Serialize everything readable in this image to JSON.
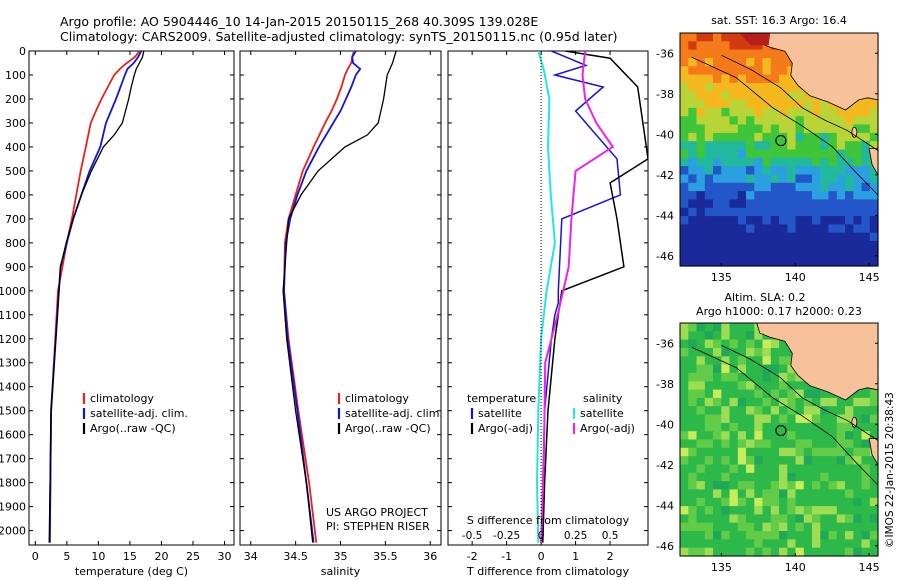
{
  "header": {
    "line1": "Argo profile: AO 5904446_10 14-Jan-2015 20150115_268 40.309S 139.028E",
    "line2": "Climatology: CARS2009. Satellite-adjusted climatology: synTS_20150115.nc (0.95d later)"
  },
  "colors": {
    "climatology": "#e8221b",
    "satellite": "#1414d8",
    "argo": "#000000",
    "sat_temp": "#22e6e6",
    "sat_sal_mag": "#ee22ee",
    "land": "#f7c19a"
  },
  "depth_axis": {
    "ticks": [
      "0",
      "100",
      "200",
      "300",
      "400",
      "500",
      "600",
      "700",
      "800",
      "900",
      "1000",
      "1100",
      "1200",
      "1300",
      "1400",
      "1500",
      "1600",
      "1700",
      "1800",
      "1900",
      "2000"
    ],
    "ylim": [
      0,
      2060
    ]
  },
  "chart_data": [
    {
      "type": "line",
      "xlabel": "temperature (deg C)",
      "xticks": [
        "0",
        "5",
        "10",
        "15",
        "20",
        "25",
        "30"
      ],
      "xlim": [
        -1,
        31.5
      ],
      "legend": [
        "climatology",
        "satellite-adj. clim.",
        "Argo(..raw -QC)"
      ],
      "series": [
        {
          "name": "climatology",
          "x": [
            16.5,
            15.8,
            14.5,
            13.4,
            12.5,
            11.5,
            10.5,
            9.6,
            8.8,
            8.0,
            7.2,
            6.5,
            5.8,
            5.0,
            4.3,
            3.6,
            2.5,
            2.3
          ],
          "y": [
            0,
            25,
            50,
            75,
            100,
            150,
            200,
            250,
            300,
            400,
            500,
            600,
            700,
            800,
            900,
            1000,
            1500,
            2050
          ]
        },
        {
          "name": "satellite-adj. clim.",
          "x": [
            16.8,
            16.3,
            15.6,
            14.6,
            14.2,
            13.5,
            12.8,
            12.0,
            11.2,
            10.3,
            8.6,
            7.3,
            6.0,
            5.0,
            4.0,
            2.5,
            2.3
          ],
          "y": [
            0,
            25,
            50,
            75,
            100,
            150,
            200,
            250,
            300,
            400,
            500,
            600,
            700,
            800,
            900,
            1500,
            2050
          ]
        },
        {
          "name": "Argo(..raw -QC)",
          "x": [
            17.2,
            17.0,
            16.5,
            16.0,
            15.7,
            15.2,
            14.8,
            14.3,
            13.8,
            12.5,
            10.8,
            8.9,
            7.3,
            6.0,
            4.9,
            4.0,
            2.5,
            2.2
          ],
          "y": [
            0,
            25,
            50,
            75,
            100,
            150,
            200,
            250,
            300,
            350,
            400,
            500,
            600,
            700,
            800,
            900,
            1500,
            2050
          ]
        }
      ]
    },
    {
      "type": "line",
      "xlabel": "salinity",
      "xticks": [
        "34",
        "34.5",
        "35",
        "35.5",
        "36"
      ],
      "xlim": [
        33.88,
        36.12
      ],
      "legend": [
        "climatology",
        "satellite-adj. clim.",
        "Argo(..raw -QC)"
      ],
      "annotation": [
        "US ARGO PROJECT",
        "PI: STEPHEN RISER"
      ],
      "series": [
        {
          "name": "climatology",
          "x": [
            35.15,
            35.13,
            35.12,
            35.08,
            35.05,
            35.01,
            34.96,
            34.9,
            34.83,
            34.7,
            34.58,
            34.5,
            34.42,
            34.38,
            34.37,
            34.42,
            34.53,
            34.65,
            34.73
          ],
          "y": [
            0,
            25,
            50,
            75,
            100,
            150,
            200,
            250,
            300,
            400,
            500,
            600,
            700,
            800,
            1000,
            1200,
            1500,
            1800,
            2050
          ]
        },
        {
          "name": "satellite-adj. clim.",
          "x": [
            35.17,
            35.13,
            35.14,
            35.22,
            35.17,
            35.12,
            35.06,
            35.0,
            34.92,
            34.76,
            34.62,
            34.52,
            34.44,
            34.39,
            34.37,
            34.41,
            34.52,
            34.62,
            34.7
          ],
          "y": [
            0,
            25,
            50,
            75,
            100,
            150,
            200,
            250,
            300,
            400,
            500,
            600,
            700,
            800,
            1000,
            1200,
            1500,
            1800,
            2050
          ]
        },
        {
          "name": "Argo(..raw -QC)",
          "x": [
            35.62,
            35.6,
            35.58,
            35.55,
            35.52,
            35.5,
            35.48,
            35.45,
            35.42,
            35.3,
            35.05,
            34.75,
            34.56,
            34.42,
            34.36,
            34.4,
            34.5,
            34.62,
            34.69
          ],
          "y": [
            0,
            25,
            50,
            75,
            100,
            150,
            200,
            250,
            300,
            350,
            400,
            500,
            600,
            700,
            1000,
            1200,
            1500,
            1800,
            2050
          ]
        }
      ]
    },
    {
      "type": "line",
      "xlabel": "T difference from climatology",
      "xticks": [
        "-2",
        "-1",
        "0",
        "1",
        "2"
      ],
      "xlim": [
        -2.7,
        3.1
      ],
      "s_label": "S difference from climatology",
      "s_ticks": [
        "-0.5",
        "-0.25",
        "0",
        "0.25",
        "0.5"
      ],
      "legend_temperature": [
        "temperature",
        "satellite",
        "Argo(-adj)"
      ],
      "legend_salinity": [
        "salinity",
        "satellite",
        "Argo(-adj)"
      ],
      "series": [
        {
          "name": "satellite",
          "x": [
            0.3,
            0.8,
            1.3,
            0.4,
            1.8,
            1.0,
            2.2,
            2.3,
            0.6,
            0.5,
            0.5,
            0.4,
            0.3,
            0.1,
            0.05,
            0.02
          ],
          "y": [
            0,
            30,
            60,
            100,
            150,
            250,
            450,
            600,
            700,
            1000,
            1050,
            1100,
            1200,
            1500,
            1800,
            2050
          ]
        },
        {
          "name": "Argo(-adj)",
          "x": [
            0.7,
            2.0,
            2.8,
            3.0,
            3.1,
            2.0,
            2.2,
            2.4,
            0.6,
            0.4,
            0.2,
            0.1,
            0.05
          ],
          "y": [
            0,
            30,
            150,
            350,
            450,
            550,
            700,
            900,
            1000,
            1200,
            1500,
            1800,
            2050
          ]
        },
        {
          "name": "satellite",
          "x": [
            -0.02,
            0.02,
            0.06,
            0.05,
            0.07,
            0.1,
            0.04,
            0.0,
            -0.02,
            -0.03,
            -0.02
          ],
          "y": [
            0,
            80,
            200,
            400,
            600,
            800,
            1000,
            1200,
            1500,
            1800,
            2050
          ]
        },
        {
          "name": "Argo(-adj)",
          "x": [
            0.32,
            0.3,
            0.32,
            0.4,
            0.52,
            0.25,
            0.22,
            0.2,
            0.12,
            0.03,
            0.02,
            0.0
          ],
          "y": [
            0,
            100,
            200,
            300,
            400,
            500,
            700,
            900,
            1100,
            1300,
            1700,
            2050
          ]
        }
      ]
    }
  ],
  "maps": [
    {
      "title": "sat. SST: 16.3 Argo: 16.4",
      "yticks": [
        "-36",
        "-38",
        "-40",
        "-42",
        "-44",
        "-46"
      ],
      "xticks": [
        "135",
        "140",
        "145"
      ]
    },
    {
      "title_line1": "Altim. SLA: 0.2",
      "title_line2": "Argo h1000: 0.17 h2000: 0.23",
      "yticks": [
        "-36",
        "-38",
        "-40",
        "-42",
        "-44",
        "-46"
      ],
      "xticks": [
        "135",
        "140",
        "145"
      ],
      "credit": "©IMOS 22-Jan-2015 20:38:43"
    }
  ]
}
